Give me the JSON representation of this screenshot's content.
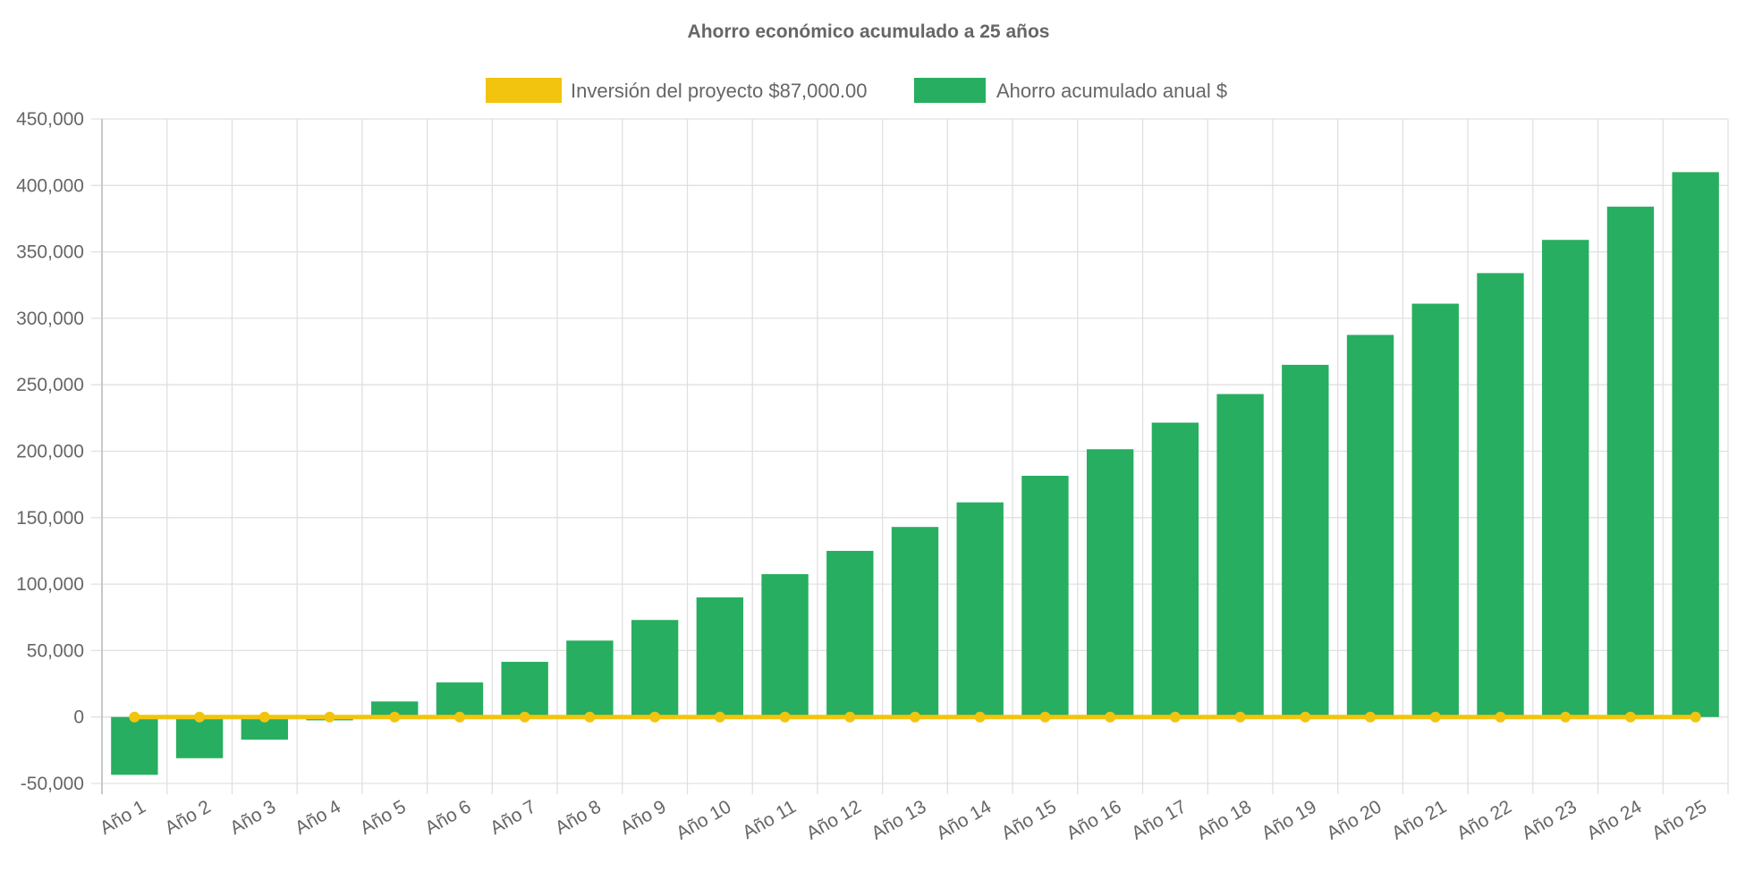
{
  "chart_data": {
    "type": "bar",
    "title": "Ahorro económico acumulado a 25 años",
    "categories": [
      "Año 1",
      "Año 2",
      "Año 3",
      "Año 4",
      "Año 5",
      "Año 6",
      "Año 7",
      "Año 8",
      "Año 9",
      "Año 10",
      "Año 11",
      "Año 12",
      "Año 13",
      "Año 14",
      "Año 15",
      "Año 16",
      "Año 17",
      "Año 18",
      "Año 19",
      "Año 20",
      "Año 21",
      "Año 22",
      "Año 23",
      "Año 24",
      "Año 25"
    ],
    "series": [
      {
        "name": "Inversión del proyecto $87,000.00",
        "type": "line",
        "color": "#f2c40f",
        "values": [
          0,
          0,
          0,
          0,
          0,
          0,
          0,
          0,
          0,
          0,
          0,
          0,
          0,
          0,
          0,
          0,
          0,
          0,
          0,
          0,
          0,
          0,
          0,
          0,
          0
        ]
      },
      {
        "name": "Ahorro acumulado anual $",
        "type": "bar",
        "color": "#27ae60",
        "values": [
          -43500,
          -31000,
          -17000,
          -2500,
          11700,
          26000,
          41500,
          57500,
          73000,
          90000,
          107500,
          125000,
          143000,
          161500,
          181500,
          201500,
          221500,
          243000,
          265000,
          287500,
          311000,
          334000,
          359000,
          384000,
          410000
        ]
      }
    ],
    "ylim": [
      -50000,
      450000
    ],
    "yticks": [
      "450,000",
      "400,000",
      "350,000",
      "300,000",
      "250,000",
      "200,000",
      "150,000",
      "100,000",
      "50,000",
      "0",
      "-50,000"
    ],
    "grid": true,
    "legend": "top"
  }
}
